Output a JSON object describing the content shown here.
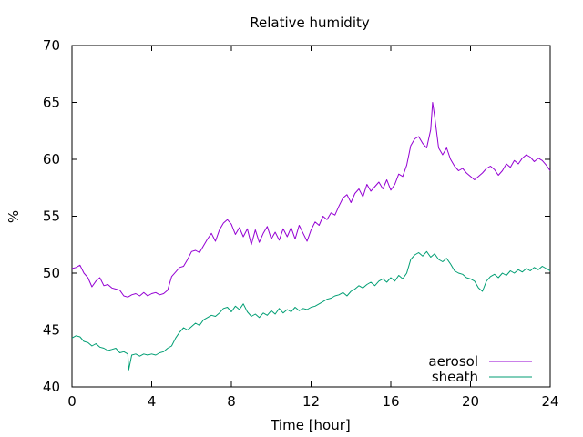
{
  "chart_data": {
    "type": "line",
    "title": "Relative humidity",
    "xlabel": "Time [hour]",
    "ylabel": "%",
    "xlim": [
      0,
      24
    ],
    "ylim": [
      40,
      70
    ],
    "xticks": [
      0,
      4,
      8,
      12,
      16,
      20,
      24
    ],
    "yticks": [
      40,
      45,
      50,
      55,
      60,
      65,
      70
    ],
    "grid": false,
    "legend_position": "bottom-right",
    "series": [
      {
        "name": "aerosol",
        "color": "#9400d3",
        "points": [
          [
            0,
            50.4
          ],
          [
            0.2,
            50.5
          ],
          [
            0.4,
            50.7
          ],
          [
            0.6,
            50.0
          ],
          [
            0.8,
            49.6
          ],
          [
            1.0,
            48.8
          ],
          [
            1.2,
            49.3
          ],
          [
            1.4,
            49.6
          ],
          [
            1.6,
            48.9
          ],
          [
            1.8,
            49.0
          ],
          [
            2.0,
            48.7
          ],
          [
            2.2,
            48.6
          ],
          [
            2.4,
            48.5
          ],
          [
            2.6,
            48.0
          ],
          [
            2.8,
            47.9
          ],
          [
            3.0,
            48.1
          ],
          [
            3.2,
            48.2
          ],
          [
            3.4,
            48.0
          ],
          [
            3.6,
            48.3
          ],
          [
            3.8,
            48.0
          ],
          [
            4.0,
            48.2
          ],
          [
            4.2,
            48.3
          ],
          [
            4.4,
            48.1
          ],
          [
            4.6,
            48.2
          ],
          [
            4.8,
            48.5
          ],
          [
            5.0,
            49.7
          ],
          [
            5.2,
            50.1
          ],
          [
            5.4,
            50.5
          ],
          [
            5.6,
            50.6
          ],
          [
            5.8,
            51.2
          ],
          [
            6.0,
            51.9
          ],
          [
            6.2,
            52.0
          ],
          [
            6.4,
            51.8
          ],
          [
            6.6,
            52.4
          ],
          [
            6.8,
            53.0
          ],
          [
            7.0,
            53.5
          ],
          [
            7.2,
            52.8
          ],
          [
            7.4,
            53.8
          ],
          [
            7.6,
            54.4
          ],
          [
            7.8,
            54.7
          ],
          [
            8.0,
            54.3
          ],
          [
            8.2,
            53.4
          ],
          [
            8.4,
            54.0
          ],
          [
            8.6,
            53.2
          ],
          [
            8.8,
            53.9
          ],
          [
            9.0,
            52.5
          ],
          [
            9.2,
            53.8
          ],
          [
            9.4,
            52.7
          ],
          [
            9.6,
            53.5
          ],
          [
            9.8,
            54.1
          ],
          [
            10.0,
            53.0
          ],
          [
            10.2,
            53.6
          ],
          [
            10.4,
            52.9
          ],
          [
            10.6,
            53.9
          ],
          [
            10.8,
            53.2
          ],
          [
            11.0,
            54.0
          ],
          [
            11.2,
            53.0
          ],
          [
            11.4,
            54.2
          ],
          [
            11.6,
            53.5
          ],
          [
            11.8,
            52.8
          ],
          [
            12.0,
            53.8
          ],
          [
            12.2,
            54.5
          ],
          [
            12.4,
            54.2
          ],
          [
            12.6,
            55.0
          ],
          [
            12.8,
            54.7
          ],
          [
            13.0,
            55.3
          ],
          [
            13.2,
            55.1
          ],
          [
            13.4,
            55.9
          ],
          [
            13.6,
            56.6
          ],
          [
            13.8,
            56.9
          ],
          [
            14.0,
            56.2
          ],
          [
            14.2,
            57.0
          ],
          [
            14.4,
            57.4
          ],
          [
            14.6,
            56.7
          ],
          [
            14.8,
            57.8
          ],
          [
            15.0,
            57.2
          ],
          [
            15.2,
            57.6
          ],
          [
            15.4,
            58.0
          ],
          [
            15.6,
            57.4
          ],
          [
            15.8,
            58.2
          ],
          [
            16.0,
            57.3
          ],
          [
            16.2,
            57.8
          ],
          [
            16.4,
            58.7
          ],
          [
            16.6,
            58.5
          ],
          [
            16.8,
            59.5
          ],
          [
            17.0,
            61.2
          ],
          [
            17.2,
            61.8
          ],
          [
            17.4,
            62.0
          ],
          [
            17.6,
            61.4
          ],
          [
            17.8,
            61.0
          ],
          [
            18.0,
            62.6
          ],
          [
            18.1,
            65.0
          ],
          [
            18.2,
            63.8
          ],
          [
            18.4,
            61.0
          ],
          [
            18.6,
            60.4
          ],
          [
            18.8,
            61.0
          ],
          [
            19.0,
            60.0
          ],
          [
            19.2,
            59.4
          ],
          [
            19.4,
            59.0
          ],
          [
            19.6,
            59.2
          ],
          [
            19.8,
            58.8
          ],
          [
            20.0,
            58.5
          ],
          [
            20.2,
            58.2
          ],
          [
            20.4,
            58.5
          ],
          [
            20.6,
            58.8
          ],
          [
            20.8,
            59.2
          ],
          [
            21.0,
            59.4
          ],
          [
            21.2,
            59.1
          ],
          [
            21.4,
            58.6
          ],
          [
            21.6,
            59.0
          ],
          [
            21.8,
            59.6
          ],
          [
            22.0,
            59.3
          ],
          [
            22.2,
            59.9
          ],
          [
            22.4,
            59.6
          ],
          [
            22.6,
            60.1
          ],
          [
            22.8,
            60.4
          ],
          [
            23.0,
            60.2
          ],
          [
            23.2,
            59.8
          ],
          [
            23.4,
            60.1
          ],
          [
            23.6,
            59.9
          ],
          [
            23.8,
            59.5
          ],
          [
            24.0,
            59.0
          ]
        ]
      },
      {
        "name": "sheath",
        "color": "#009e73",
        "points": [
          [
            0,
            44.3
          ],
          [
            0.2,
            44.5
          ],
          [
            0.4,
            44.4
          ],
          [
            0.6,
            44.0
          ],
          [
            0.8,
            43.9
          ],
          [
            1.0,
            43.6
          ],
          [
            1.2,
            43.8
          ],
          [
            1.4,
            43.5
          ],
          [
            1.6,
            43.4
          ],
          [
            1.8,
            43.2
          ],
          [
            2.0,
            43.3
          ],
          [
            2.2,
            43.4
          ],
          [
            2.4,
            43.0
          ],
          [
            2.6,
            43.1
          ],
          [
            2.8,
            42.9
          ],
          [
            2.85,
            41.5
          ],
          [
            3.0,
            42.8
          ],
          [
            3.2,
            42.9
          ],
          [
            3.4,
            42.7
          ],
          [
            3.6,
            42.9
          ],
          [
            3.8,
            42.8
          ],
          [
            4.0,
            42.9
          ],
          [
            4.2,
            42.8
          ],
          [
            4.4,
            43.0
          ],
          [
            4.6,
            43.1
          ],
          [
            4.8,
            43.4
          ],
          [
            5.0,
            43.6
          ],
          [
            5.2,
            44.3
          ],
          [
            5.4,
            44.8
          ],
          [
            5.6,
            45.2
          ],
          [
            5.8,
            45.0
          ],
          [
            6.0,
            45.3
          ],
          [
            6.2,
            45.6
          ],
          [
            6.4,
            45.4
          ],
          [
            6.6,
            45.9
          ],
          [
            6.8,
            46.1
          ],
          [
            7.0,
            46.3
          ],
          [
            7.2,
            46.2
          ],
          [
            7.4,
            46.5
          ],
          [
            7.6,
            46.9
          ],
          [
            7.8,
            47.0
          ],
          [
            8.0,
            46.6
          ],
          [
            8.2,
            47.1
          ],
          [
            8.4,
            46.8
          ],
          [
            8.6,
            47.3
          ],
          [
            8.8,
            46.6
          ],
          [
            9.0,
            46.2
          ],
          [
            9.2,
            46.4
          ],
          [
            9.4,
            46.1
          ],
          [
            9.6,
            46.5
          ],
          [
            9.8,
            46.3
          ],
          [
            10.0,
            46.7
          ],
          [
            10.2,
            46.4
          ],
          [
            10.4,
            46.9
          ],
          [
            10.6,
            46.5
          ],
          [
            10.8,
            46.8
          ],
          [
            11.0,
            46.6
          ],
          [
            11.2,
            47.0
          ],
          [
            11.4,
            46.7
          ],
          [
            11.6,
            46.9
          ],
          [
            11.8,
            46.8
          ],
          [
            12.0,
            47.0
          ],
          [
            12.2,
            47.1
          ],
          [
            12.4,
            47.3
          ],
          [
            12.6,
            47.5
          ],
          [
            12.8,
            47.7
          ],
          [
            13.0,
            47.8
          ],
          [
            13.2,
            48.0
          ],
          [
            13.4,
            48.1
          ],
          [
            13.6,
            48.3
          ],
          [
            13.8,
            48.0
          ],
          [
            14.0,
            48.4
          ],
          [
            14.2,
            48.6
          ],
          [
            14.4,
            48.9
          ],
          [
            14.6,
            48.7
          ],
          [
            14.8,
            49.0
          ],
          [
            15.0,
            49.2
          ],
          [
            15.2,
            48.9
          ],
          [
            15.4,
            49.3
          ],
          [
            15.6,
            49.5
          ],
          [
            15.8,
            49.2
          ],
          [
            16.0,
            49.6
          ],
          [
            16.2,
            49.3
          ],
          [
            16.4,
            49.8
          ],
          [
            16.6,
            49.5
          ],
          [
            16.8,
            50.0
          ],
          [
            17.0,
            51.2
          ],
          [
            17.2,
            51.6
          ],
          [
            17.4,
            51.8
          ],
          [
            17.6,
            51.5
          ],
          [
            17.8,
            51.9
          ],
          [
            18.0,
            51.4
          ],
          [
            18.2,
            51.7
          ],
          [
            18.4,
            51.2
          ],
          [
            18.6,
            51.0
          ],
          [
            18.8,
            51.3
          ],
          [
            19.0,
            50.8
          ],
          [
            19.2,
            50.2
          ],
          [
            19.4,
            50.0
          ],
          [
            19.6,
            49.9
          ],
          [
            19.8,
            49.6
          ],
          [
            20.0,
            49.5
          ],
          [
            20.2,
            49.3
          ],
          [
            20.4,
            48.7
          ],
          [
            20.6,
            48.4
          ],
          [
            20.8,
            49.3
          ],
          [
            21.0,
            49.7
          ],
          [
            21.2,
            49.9
          ],
          [
            21.4,
            49.6
          ],
          [
            21.6,
            50.0
          ],
          [
            21.8,
            49.8
          ],
          [
            22.0,
            50.2
          ],
          [
            22.2,
            50.0
          ],
          [
            22.4,
            50.3
          ],
          [
            22.6,
            50.1
          ],
          [
            22.8,
            50.4
          ],
          [
            23.0,
            50.2
          ],
          [
            23.2,
            50.5
          ],
          [
            23.4,
            50.3
          ],
          [
            23.6,
            50.6
          ],
          [
            23.8,
            50.4
          ],
          [
            24.0,
            50.2
          ]
        ]
      }
    ]
  }
}
